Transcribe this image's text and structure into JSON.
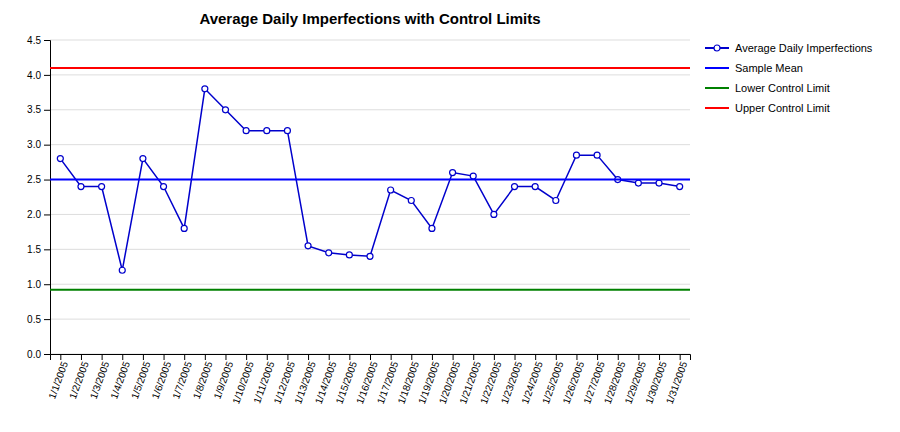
{
  "chart_data": {
    "type": "line",
    "title": "Average Daily Imperfections with Control Limits",
    "categories": [
      "1/1/2005",
      "1/2/2005",
      "1/3/2005",
      "1/4/2005",
      "1/5/2005",
      "1/6/2005",
      "1/7/2005",
      "1/8/2005",
      "1/9/2005",
      "1/10/2005",
      "1/11/2005",
      "1/12/2005",
      "1/13/2005",
      "1/14/2005",
      "1/15/2005",
      "1/16/2005",
      "1/17/2005",
      "1/18/2005",
      "1/19/2005",
      "1/20/2005",
      "1/21/2005",
      "1/22/2005",
      "1/23/2005",
      "1/24/2005",
      "1/25/2005",
      "1/26/2005",
      "1/27/2005",
      "1/28/2005",
      "1/29/2005",
      "1/30/2005",
      "1/31/2005"
    ],
    "series": [
      {
        "name": "Average Daily Imperfections",
        "color": "#0000CC",
        "marker": "circle",
        "values": [
          2.8,
          2.4,
          2.4,
          1.2,
          2.8,
          2.4,
          1.8,
          3.8,
          3.5,
          3.2,
          3.2,
          3.2,
          1.55,
          1.45,
          1.42,
          1.4,
          2.35,
          2.2,
          1.8,
          2.6,
          2.55,
          2.0,
          2.4,
          2.4,
          2.2,
          2.85,
          2.85,
          2.5,
          2.45,
          2.45,
          2.4
        ]
      },
      {
        "name": "Sample Mean",
        "type": "hline",
        "color": "#0000FF",
        "value": 2.5
      },
      {
        "name": "Lower Control Limit",
        "type": "hline",
        "color": "#008000",
        "value": 0.92
      },
      {
        "name": "Upper Control Limit",
        "type": "hline",
        "color": "#FF0000",
        "value": 4.1
      }
    ],
    "ylim": [
      0.0,
      4.5
    ],
    "yticks": [
      {
        "value": 0,
        "label": "0.0"
      },
      0.5,
      {
        "value": 1,
        "label": "1.0"
      },
      1.5,
      {
        "value": 2,
        "label": "2.0"
      },
      2.5,
      {
        "value": 3,
        "label": "3.0"
      },
      3.5,
      {
        "value": 4,
        "label": "4.0"
      },
      4.5
    ],
    "grid": true,
    "legend": "right"
  }
}
